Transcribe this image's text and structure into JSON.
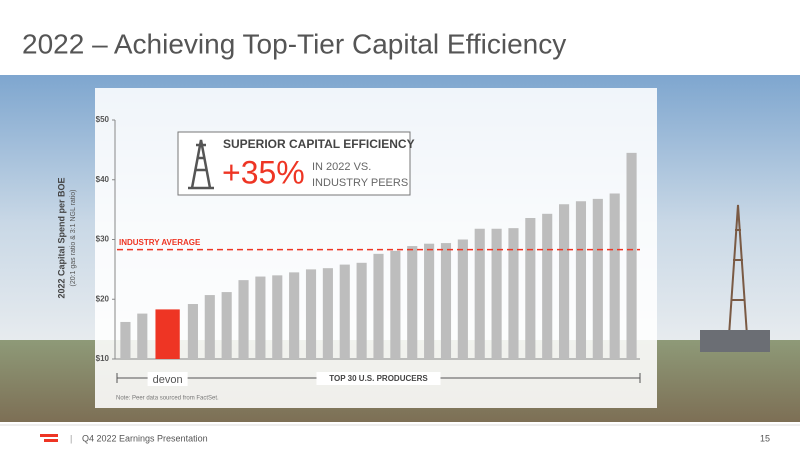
{
  "slide": {
    "title": "2022 – Achieving Top-Tier Capital Efficiency",
    "footer": "Q4 2022 Earnings Presentation",
    "separator": "|",
    "page": "15"
  },
  "chart_data": {
    "type": "bar",
    "y_label": "2022 Capital Spend per BOE",
    "y_sublabel": "(20:1 gas ratio & 3:1 NGL ratio)",
    "categories": [
      null,
      null,
      "devon",
      null,
      null,
      null,
      null,
      null,
      null,
      null,
      null,
      null,
      null,
      null,
      null,
      null,
      null,
      null,
      null,
      null,
      null,
      null,
      null,
      null,
      null,
      null,
      null,
      null,
      null,
      null
    ],
    "values": [
      16.2,
      17.6,
      18.3,
      19.2,
      20.7,
      21.2,
      23.2,
      23.8,
      24.0,
      24.5,
      25.0,
      25.2,
      25.8,
      26.1,
      27.6,
      28.1,
      28.9,
      29.3,
      29.4,
      30.0,
      31.8,
      31.8,
      31.9,
      33.6,
      34.3,
      35.9,
      36.4,
      36.8,
      37.7,
      44.5
    ],
    "color": "#bdbdbd",
    "highlight_index": 2,
    "highlight_color": "#ee3524",
    "ylim": [
      10,
      50
    ],
    "yticks": [
      {
        "value": 10,
        "label": "$10"
      },
      {
        "value": 20,
        "label": "$20"
      },
      {
        "value": 30,
        "label": "$30"
      },
      {
        "value": 40,
        "label": "$40"
      },
      {
        "value": 50,
        "label": "$50"
      }
    ],
    "reference_line": {
      "label": "INDUSTRY AVERAGE",
      "value": 28.3,
      "color": "#ee3524"
    },
    "x_group_label": "TOP 30 U.S. PRODUCERS",
    "callout": {
      "title": "SUPERIOR CAPITAL EFFICIENCY",
      "value": "+35%",
      "line1": "IN 2022 VS.",
      "line2": "INDUSTRY PEERS"
    },
    "note": "Note: Peer data sourced from FactSet."
  }
}
